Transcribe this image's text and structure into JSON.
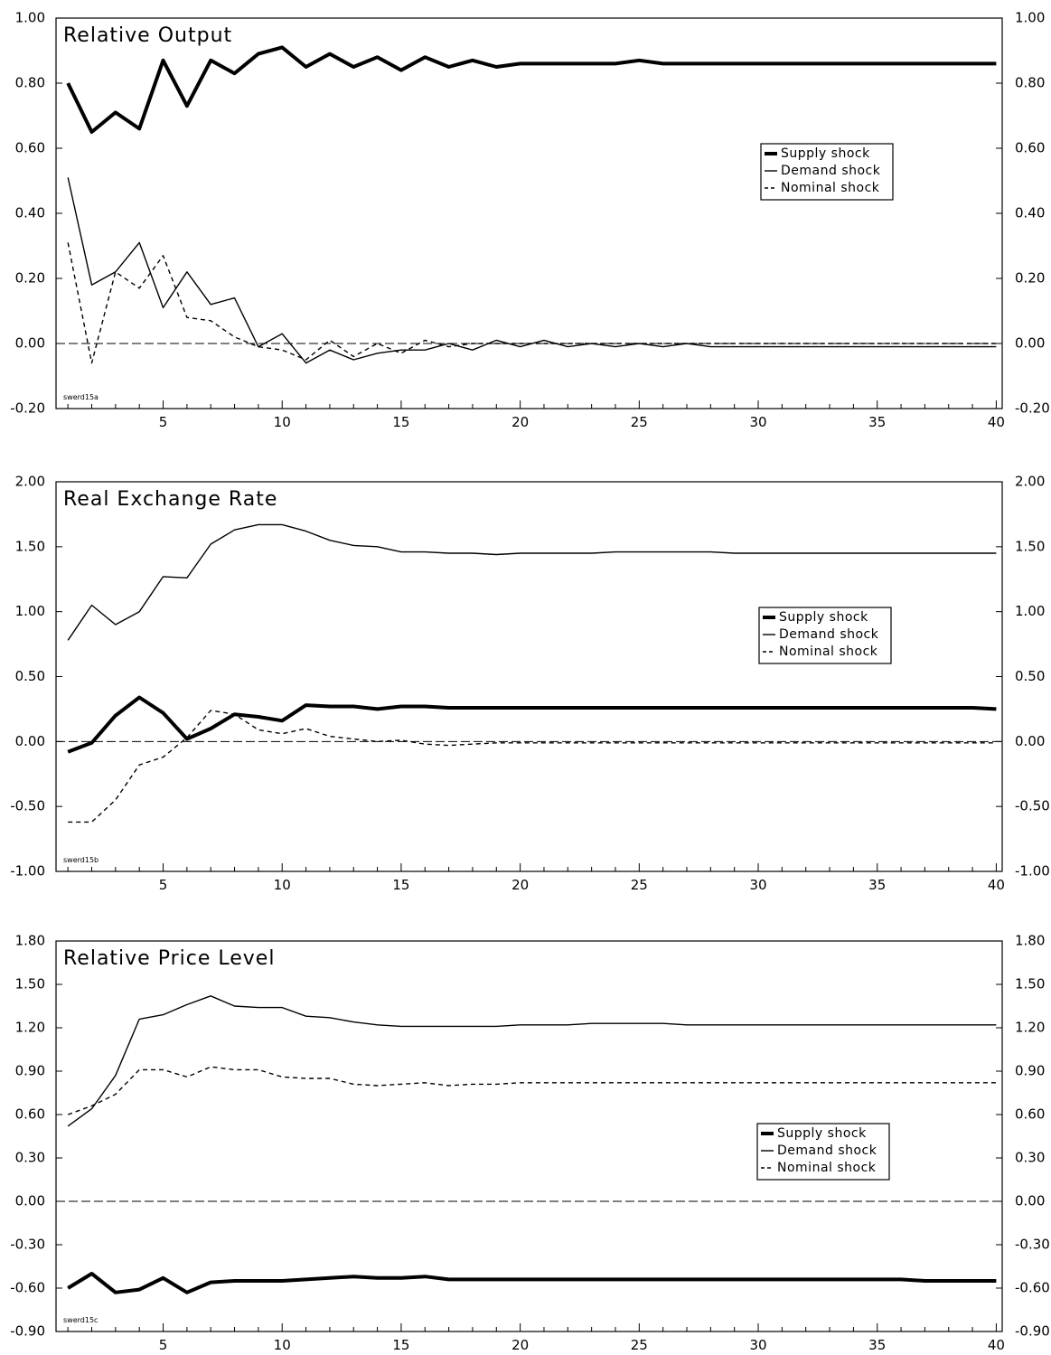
{
  "chart_data": [
    {
      "type": "line",
      "id": "swerd15a",
      "title": "Relative Output",
      "footnote": "swerd15a",
      "x": [
        1,
        2,
        3,
        4,
        5,
        6,
        7,
        8,
        9,
        10,
        11,
        12,
        13,
        14,
        15,
        16,
        17,
        18,
        19,
        20,
        21,
        22,
        23,
        24,
        25,
        26,
        27,
        28,
        29,
        30,
        31,
        32,
        33,
        34,
        35,
        36,
        37,
        38,
        39,
        40
      ],
      "ylim": [
        -0.2,
        1.0
      ],
      "yticks": [
        -0.2,
        0.0,
        0.2,
        0.4,
        0.6,
        0.8,
        1.0
      ],
      "ytick_labels": [
        "-0.20",
        "0.00",
        "0.20",
        "0.40",
        "0.60",
        "0.80",
        "1.00"
      ],
      "xticks": [
        5,
        10,
        15,
        20,
        25,
        30,
        35,
        40
      ],
      "legend": [
        "Supply shock",
        "Demand shock",
        "Nominal shock"
      ],
      "legend_position": "right",
      "series": [
        {
          "name": "Supply shock",
          "style": "thick",
          "values": [
            0.8,
            0.65,
            0.71,
            0.66,
            0.87,
            0.73,
            0.87,
            0.83,
            0.89,
            0.91,
            0.85,
            0.89,
            0.85,
            0.88,
            0.84,
            0.88,
            0.85,
            0.87,
            0.85,
            0.86,
            0.86,
            0.86,
            0.86,
            0.86,
            0.87,
            0.86,
            0.86,
            0.86,
            0.86,
            0.86,
            0.86,
            0.86,
            0.86,
            0.86,
            0.86,
            0.86,
            0.86,
            0.86,
            0.86,
            0.86
          ]
        },
        {
          "name": "Demand shock",
          "style": "thin",
          "values": [
            0.51,
            0.18,
            0.22,
            0.31,
            0.11,
            0.22,
            0.12,
            0.14,
            -0.01,
            0.03,
            -0.06,
            -0.02,
            -0.05,
            -0.03,
            -0.02,
            -0.02,
            0.0,
            -0.02,
            0.01,
            -0.01,
            0.01,
            -0.01,
            0.0,
            -0.01,
            0.0,
            -0.01,
            0.0,
            -0.01,
            -0.01,
            -0.01,
            -0.01,
            -0.01,
            -0.01,
            -0.01,
            -0.01,
            -0.01,
            -0.01,
            -0.01,
            -0.01,
            -0.01
          ]
        },
        {
          "name": "Nominal shock",
          "style": "dashed",
          "values": [
            0.31,
            -0.06,
            0.22,
            0.17,
            0.27,
            0.08,
            0.07,
            0.02,
            -0.01,
            -0.02,
            -0.05,
            0.01,
            -0.04,
            0.0,
            -0.03,
            0.01,
            -0.01,
            0.0,
            0.0,
            0.0,
            0.0,
            0.0,
            0.0,
            0.0,
            0.0,
            0.0,
            0.0,
            0.0,
            0.0,
            0.0,
            0.0,
            0.0,
            0.0,
            0.0,
            0.0,
            0.0,
            0.0,
            0.0,
            0.0,
            0.0
          ]
        }
      ]
    },
    {
      "type": "line",
      "id": "swerd15b",
      "title": "Real Exchange Rate",
      "footnote": "swerd15b",
      "x": [
        1,
        2,
        3,
        4,
        5,
        6,
        7,
        8,
        9,
        10,
        11,
        12,
        13,
        14,
        15,
        16,
        17,
        18,
        19,
        20,
        21,
        22,
        23,
        24,
        25,
        26,
        27,
        28,
        29,
        30,
        31,
        32,
        33,
        34,
        35,
        36,
        37,
        38,
        39,
        40
      ],
      "ylim": [
        -1.0,
        2.0
      ],
      "yticks": [
        -1.0,
        -0.5,
        0.0,
        0.5,
        1.0,
        1.5,
        2.0
      ],
      "ytick_labels": [
        "-1.00",
        "-0.50",
        "0.00",
        "0.50",
        "1.00",
        "1.50",
        "2.00"
      ],
      "xticks": [
        5,
        10,
        15,
        20,
        25,
        30,
        35,
        40
      ],
      "legend": [
        "Supply shock",
        "Demand shock",
        "Nominal shock"
      ],
      "legend_position": "right",
      "series": [
        {
          "name": "Supply shock",
          "style": "thick",
          "values": [
            -0.08,
            -0.01,
            0.2,
            0.34,
            0.22,
            0.02,
            0.1,
            0.21,
            0.19,
            0.16,
            0.28,
            0.27,
            0.27,
            0.25,
            0.27,
            0.27,
            0.26,
            0.26,
            0.26,
            0.26,
            0.26,
            0.26,
            0.26,
            0.26,
            0.26,
            0.26,
            0.26,
            0.26,
            0.26,
            0.26,
            0.26,
            0.26,
            0.26,
            0.26,
            0.26,
            0.26,
            0.26,
            0.26,
            0.26,
            0.25
          ]
        },
        {
          "name": "Demand shock",
          "style": "thin",
          "values": [
            0.78,
            1.05,
            0.9,
            1.0,
            1.27,
            1.26,
            1.52,
            1.63,
            1.67,
            1.67,
            1.62,
            1.55,
            1.51,
            1.5,
            1.46,
            1.46,
            1.45,
            1.45,
            1.44,
            1.45,
            1.45,
            1.45,
            1.45,
            1.46,
            1.46,
            1.46,
            1.46,
            1.46,
            1.45,
            1.45,
            1.45,
            1.45,
            1.45,
            1.45,
            1.45,
            1.45,
            1.45,
            1.45,
            1.45,
            1.45
          ]
        },
        {
          "name": "Nominal shock",
          "style": "dashed",
          "values": [
            -0.62,
            -0.62,
            -0.45,
            -0.18,
            -0.12,
            0.03,
            0.24,
            0.21,
            0.09,
            0.06,
            0.1,
            0.04,
            0.02,
            0.0,
            0.01,
            -0.02,
            -0.03,
            -0.02,
            -0.01,
            -0.01,
            -0.01,
            -0.01,
            -0.01,
            -0.01,
            -0.01,
            -0.01,
            -0.01,
            -0.01,
            -0.01,
            -0.01,
            -0.01,
            -0.01,
            -0.01,
            -0.01,
            -0.01,
            -0.01,
            -0.01,
            -0.01,
            -0.01,
            -0.01
          ]
        }
      ]
    },
    {
      "type": "line",
      "id": "swerd15c",
      "title": "Relative Price Level",
      "footnote": "swerd15c",
      "x": [
        1,
        2,
        3,
        4,
        5,
        6,
        7,
        8,
        9,
        10,
        11,
        12,
        13,
        14,
        15,
        16,
        17,
        18,
        19,
        20,
        21,
        22,
        23,
        24,
        25,
        26,
        27,
        28,
        29,
        30,
        31,
        32,
        33,
        34,
        35,
        36,
        37,
        38,
        39,
        40
      ],
      "ylim": [
        -0.9,
        1.8
      ],
      "yticks": [
        -0.9,
        -0.6,
        -0.3,
        0.0,
        0.3,
        0.6,
        0.9,
        1.2,
        1.5,
        1.8
      ],
      "ytick_labels": [
        "-0.90",
        "-0.60",
        "-0.30",
        "0.00",
        "0.30",
        "0.60",
        "0.90",
        "1.20",
        "1.50",
        "1.80"
      ],
      "xticks": [
        5,
        10,
        15,
        20,
        25,
        30,
        35,
        40
      ],
      "legend": [
        "Supply shock",
        "Demand shock",
        "Nominal shock"
      ],
      "legend_position": "right",
      "series": [
        {
          "name": "Supply shock",
          "style": "thick",
          "values": [
            -0.6,
            -0.5,
            -0.63,
            -0.61,
            -0.53,
            -0.63,
            -0.56,
            -0.55,
            -0.55,
            -0.55,
            -0.54,
            -0.53,
            -0.52,
            -0.53,
            -0.53,
            -0.52,
            -0.54,
            -0.54,
            -0.54,
            -0.54,
            -0.54,
            -0.54,
            -0.54,
            -0.54,
            -0.54,
            -0.54,
            -0.54,
            -0.54,
            -0.54,
            -0.54,
            -0.54,
            -0.54,
            -0.54,
            -0.54,
            -0.54,
            -0.54,
            -0.55,
            -0.55,
            -0.55,
            -0.55
          ]
        },
        {
          "name": "Demand shock",
          "style": "thin",
          "values": [
            0.52,
            0.64,
            0.87,
            1.26,
            1.29,
            1.36,
            1.42,
            1.35,
            1.34,
            1.34,
            1.28,
            1.27,
            1.24,
            1.22,
            1.21,
            1.21,
            1.21,
            1.21,
            1.21,
            1.22,
            1.22,
            1.22,
            1.23,
            1.23,
            1.23,
            1.23,
            1.22,
            1.22,
            1.22,
            1.22,
            1.22,
            1.22,
            1.22,
            1.22,
            1.22,
            1.22,
            1.22,
            1.22,
            1.22,
            1.22
          ]
        },
        {
          "name": "Nominal shock",
          "style": "dashed",
          "values": [
            0.6,
            0.66,
            0.74,
            0.91,
            0.91,
            0.86,
            0.93,
            0.91,
            0.91,
            0.86,
            0.85,
            0.85,
            0.81,
            0.8,
            0.81,
            0.82,
            0.8,
            0.81,
            0.81,
            0.82,
            0.82,
            0.82,
            0.82,
            0.82,
            0.82,
            0.82,
            0.82,
            0.82,
            0.82,
            0.82,
            0.82,
            0.82,
            0.82,
            0.82,
            0.82,
            0.82,
            0.82,
            0.82,
            0.82,
            0.82
          ]
        }
      ]
    }
  ]
}
